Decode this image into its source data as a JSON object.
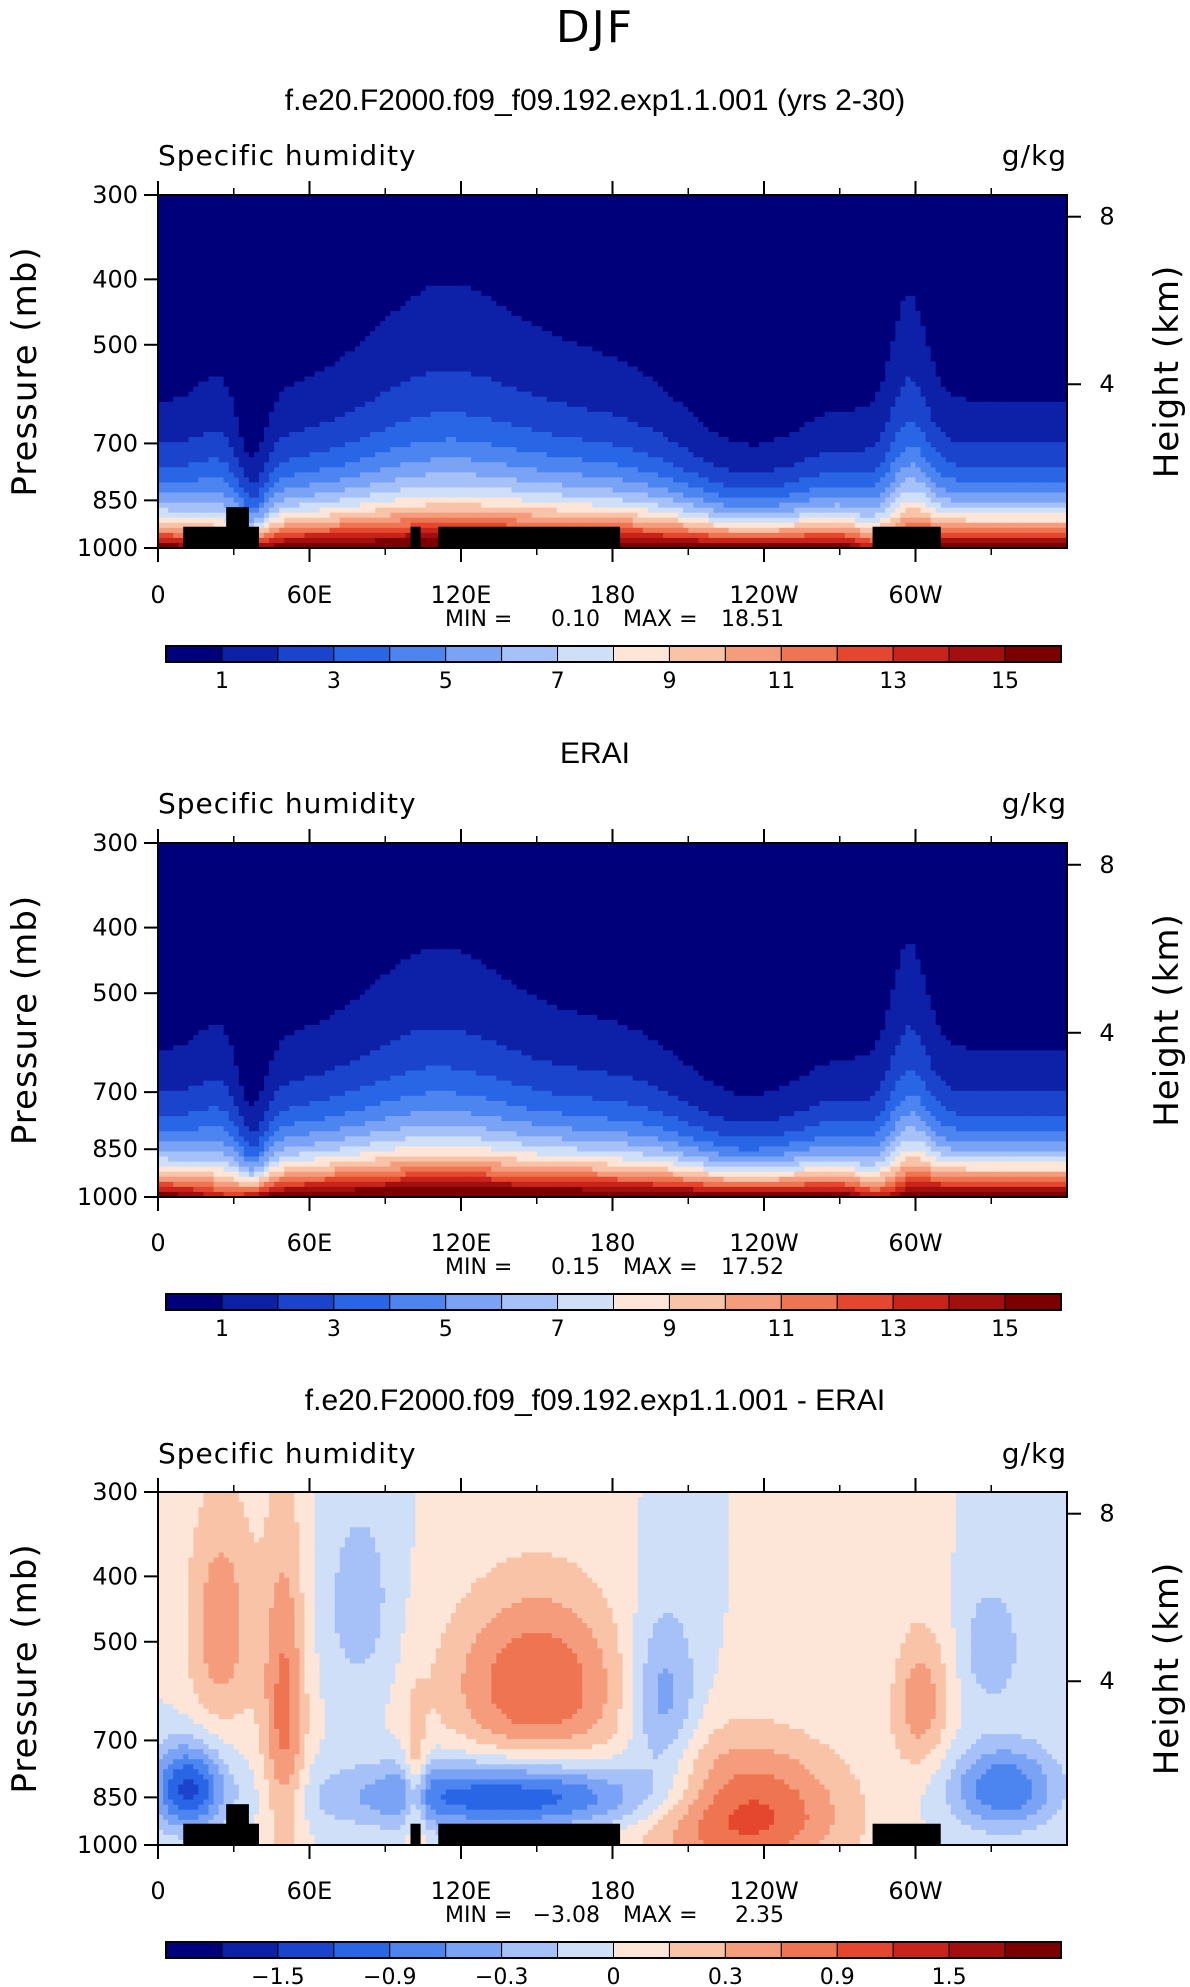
{
  "figure": {
    "season": "DJF"
  },
  "chart_data": [
    {
      "type": "heatmap",
      "title": "f.e20.F2000.f09_f09.192.exp1.1.001 (yrs 2-30)",
      "subtitle_left": "Specific humidity",
      "subtitle_right": "g/kg",
      "ylabel": "Pressure (mb)",
      "ylabel_right": "Height (km)",
      "x_ticks": [
        "0",
        "60E",
        "120E",
        "180",
        "120W",
        "60W"
      ],
      "y_ticks": [
        "300",
        "400",
        "500",
        "700",
        "850",
        "1000"
      ],
      "y_right_ticks": [
        "8",
        "4"
      ],
      "xlim": [
        0,
        360
      ],
      "ylim": [
        1000,
        300
      ],
      "y_scale": "log",
      "stats": {
        "min_label": "MIN =",
        "min": "0.10",
        "max_label": "MAX =",
        "max": "18.51"
      },
      "colorbar_labels": [
        "1",
        "3",
        "5",
        "7",
        "9",
        "11",
        "13",
        "15"
      ]
    },
    {
      "type": "heatmap",
      "title": "ERAI",
      "subtitle_left": "Specific humidity",
      "subtitle_right": "g/kg",
      "ylabel": "Pressure (mb)",
      "ylabel_right": "Height (km)",
      "x_ticks": [
        "0",
        "60E",
        "120E",
        "180",
        "120W",
        "60W"
      ],
      "y_ticks": [
        "300",
        "400",
        "500",
        "700",
        "850",
        "1000"
      ],
      "y_right_ticks": [
        "8",
        "4"
      ],
      "xlim": [
        0,
        360
      ],
      "ylim": [
        1000,
        300
      ],
      "y_scale": "log",
      "stats": {
        "min_label": "MIN =",
        "min": "0.15",
        "max_label": "MAX =",
        "max": "17.52"
      },
      "colorbar_labels": [
        "1",
        "3",
        "5",
        "7",
        "9",
        "11",
        "13",
        "15"
      ]
    },
    {
      "type": "heatmap",
      "title": "f.e20.F2000.f09_f09.192.exp1.1.001 - ERAI",
      "subtitle_left": "Specific humidity",
      "subtitle_right": "g/kg",
      "ylabel": "Pressure (mb)",
      "ylabel_right": "Height (km)",
      "x_ticks": [
        "0",
        "60E",
        "120E",
        "180",
        "120W",
        "60W"
      ],
      "y_ticks": [
        "300",
        "400",
        "500",
        "700",
        "850",
        "1000"
      ],
      "y_right_ticks": [
        "8",
        "4"
      ],
      "xlim": [
        0,
        360
      ],
      "ylim": [
        1000,
        300
      ],
      "y_scale": "log",
      "stats": {
        "min_label": "MIN =",
        "min": "−3.08",
        "max_label": "MAX =",
        "max": "2.35"
      },
      "colorbar_labels": [
        "−1.5",
        "−0.9",
        "−0.3",
        "0",
        "0.3",
        "0.9",
        "1.5"
      ]
    }
  ],
  "palette": [
    "#00007a",
    "#0d21a8",
    "#1a44cc",
    "#2866e6",
    "#4c84f0",
    "#7aa3f5",
    "#a6c1f7",
    "#cfdff8",
    "#fde6d8",
    "#f9c3a8",
    "#f59c7c",
    "#ef7451",
    "#e5472e",
    "#c9241a",
    "#a30e0f",
    "#7d0000"
  ]
}
